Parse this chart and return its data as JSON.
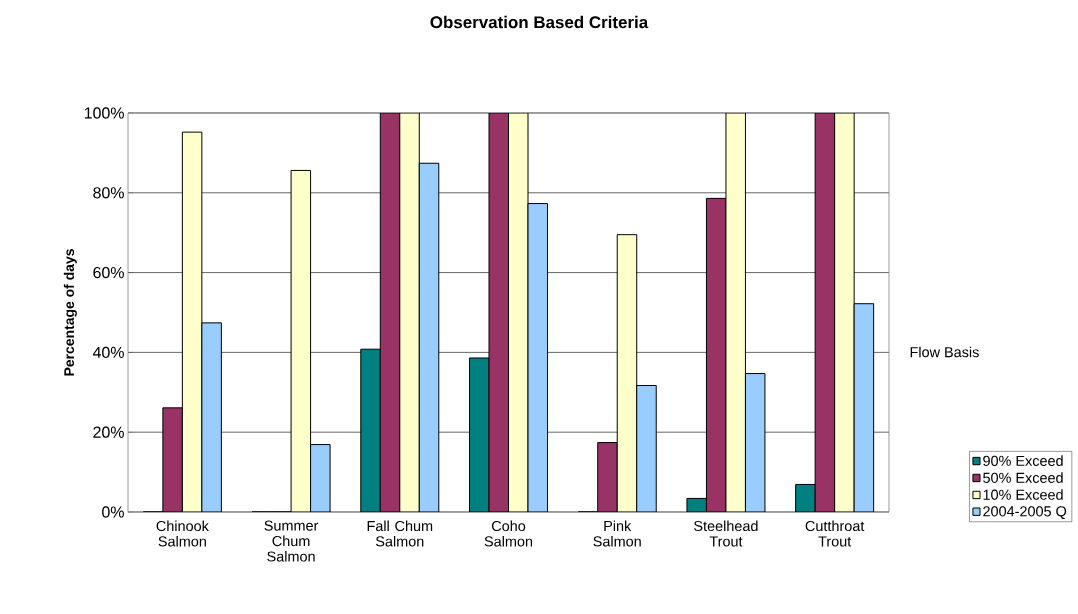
{
  "chart_data": {
    "type": "bar",
    "title": "Observation Based Criteria",
    "ylabel": "Percentage of days",
    "legend_title": "Flow Basis",
    "categories": [
      "Chinook Salmon",
      "Summer Chum Salmon",
      "Fall Chum Salmon",
      "Coho Salmon",
      "Pink Salmon",
      "Steelhead Trout",
      "Cutthroat Trout"
    ],
    "series": [
      {
        "name": "90% Exceed",
        "color": "#008080",
        "values": [
          0,
          0,
          40.8,
          38.6,
          0,
          3.4,
          6.9
        ]
      },
      {
        "name": "50% Exceed",
        "color": "#993366",
        "values": [
          26.1,
          0,
          100,
          100,
          17.4,
          78.6,
          100
        ]
      },
      {
        "name": "10% Exceed",
        "color": "#ffffcc",
        "values": [
          95.2,
          85.6,
          100,
          100,
          69.5,
          100,
          100
        ]
      },
      {
        "name": "2004-2005 Q",
        "color": "#99ccff",
        "values": [
          47.4,
          16.9,
          87.4,
          77.3,
          31.7,
          34.7,
          52.2
        ]
      }
    ],
    "ylim": [
      0,
      100
    ],
    "yticks": [
      {
        "value": 0,
        "label": "0%"
      },
      {
        "value": 20,
        "label": "20%"
      },
      {
        "value": 40,
        "label": "40%"
      },
      {
        "value": 60,
        "label": "60%"
      },
      {
        "value": 80,
        "label": "80%"
      },
      {
        "value": 100,
        "label": "100%"
      }
    ],
    "grid": "y",
    "legend": "right"
  }
}
